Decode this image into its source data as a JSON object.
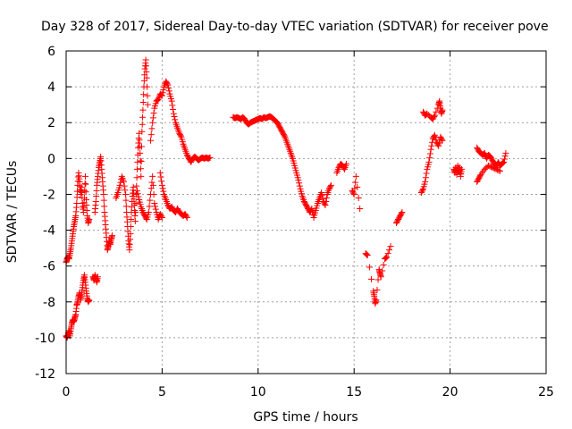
{
  "chart_data": {
    "type": "scatter",
    "title": "Day 328 of 2017, Sidereal Day-to-day VTEC variation (SDTVAR) for receiver pove",
    "xlabel": "GPS time / hours",
    "ylabel": "SDTVAR / TECUs",
    "xlim": [
      0,
      25
    ],
    "ylim": [
      -12,
      6
    ],
    "xticks": [
      0,
      5,
      10,
      15,
      20,
      25
    ],
    "yticks": [
      -12,
      -10,
      -8,
      -6,
      -4,
      -2,
      0,
      2,
      4,
      6
    ],
    "grid": true,
    "marker": "plus",
    "color": "#ff0000",
    "segments": [
      [
        [
          0.0,
          -9.9
        ],
        [
          0.05,
          -10.0
        ],
        [
          0.1,
          -9.8
        ],
        [
          0.15,
          -9.6
        ],
        [
          0.2,
          -9.9
        ],
        [
          0.25,
          -9.5
        ],
        [
          0.3,
          -9.2
        ],
        [
          0.35,
          -9.0
        ],
        [
          0.4,
          -9.1
        ],
        [
          0.45,
          -8.9
        ],
        [
          0.5,
          -8.7
        ],
        [
          0.55,
          -8.2
        ],
        [
          0.6,
          -8.0
        ],
        [
          0.65,
          -7.7
        ],
        [
          0.7,
          -7.5
        ],
        [
          0.75,
          -7.9
        ],
        [
          0.8,
          -7.6
        ],
        [
          0.85,
          -7.2
        ],
        [
          0.9,
          -6.8
        ],
        [
          0.95,
          -6.5
        ],
        [
          1.0,
          -6.9
        ],
        [
          1.05,
          -7.4
        ],
        [
          1.1,
          -7.8
        ],
        [
          1.15,
          -8.0
        ],
        [
          1.2,
          -7.9
        ]
      ],
      [
        [
          0.0,
          -5.8
        ],
        [
          0.05,
          -5.6
        ],
        [
          0.1,
          -5.5
        ],
        [
          0.15,
          -5.6
        ],
        [
          0.2,
          -5.3
        ],
        [
          0.25,
          -5.0
        ],
        [
          0.3,
          -4.6
        ],
        [
          0.35,
          -4.2
        ],
        [
          0.4,
          -3.8
        ],
        [
          0.45,
          -3.5
        ],
        [
          0.5,
          -3.2
        ],
        [
          0.55,
          -2.5
        ],
        [
          0.6,
          -1.5
        ],
        [
          0.65,
          -0.8
        ],
        [
          0.7,
          -1.3
        ],
        [
          0.75,
          -2.0
        ],
        [
          0.8,
          -1.6
        ],
        [
          0.85,
          -2.5
        ],
        [
          0.9,
          -3.0
        ],
        [
          0.95,
          -2.2
        ],
        [
          1.0,
          -1.0
        ],
        [
          1.05,
          -2.3
        ],
        [
          1.1,
          -3.2
        ],
        [
          1.15,
          -3.6
        ],
        [
          1.2,
          -3.4
        ]
      ],
      [
        [
          1.4,
          -6.6
        ],
        [
          1.45,
          -6.8
        ],
        [
          1.5,
          -6.5
        ],
        [
          1.55,
          -6.7
        ],
        [
          1.6,
          -6.9
        ],
        [
          1.65,
          -6.6
        ]
      ],
      [
        [
          1.5,
          -3.0
        ],
        [
          1.55,
          -2.4
        ],
        [
          1.6,
          -1.5
        ],
        [
          1.65,
          -1.0
        ],
        [
          1.7,
          -0.5
        ],
        [
          1.75,
          -0.2
        ],
        [
          1.8,
          0.1
        ],
        [
          1.85,
          -0.6
        ],
        [
          1.9,
          -1.3
        ],
        [
          1.95,
          -2.0
        ],
        [
          2.0,
          -3.0
        ],
        [
          2.05,
          -3.7
        ],
        [
          2.1,
          -4.4
        ],
        [
          2.15,
          -5.1
        ],
        [
          2.2,
          -4.9
        ],
        [
          2.25,
          -4.6
        ],
        [
          2.3,
          -4.8
        ],
        [
          2.35,
          -4.5
        ],
        [
          2.4,
          -4.3
        ]
      ],
      [
        [
          2.6,
          -2.2
        ],
        [
          2.7,
          -1.9
        ],
        [
          2.8,
          -1.5
        ],
        [
          2.9,
          -1.0
        ],
        [
          3.0,
          -1.3
        ],
        [
          3.1,
          -2.0
        ],
        [
          3.15,
          -3.0
        ],
        [
          3.2,
          -3.8
        ],
        [
          3.25,
          -4.6
        ],
        [
          3.3,
          -5.1
        ],
        [
          3.35,
          -4.2
        ],
        [
          3.4,
          -3.0
        ],
        [
          3.45,
          -2.1
        ],
        [
          3.5,
          -1.6
        ],
        [
          3.55,
          -2.6
        ],
        [
          3.6,
          -3.5
        ],
        [
          3.65,
          -2.0
        ],
        [
          3.7,
          -0.6
        ],
        [
          3.75,
          0.6
        ],
        [
          3.8,
          1.4
        ],
        [
          3.85,
          0.3
        ],
        [
          3.9,
          -1.0
        ],
        [
          3.95,
          1.5
        ],
        [
          4.0,
          2.7
        ],
        [
          4.05,
          4.0
        ],
        [
          4.1,
          5.0
        ],
        [
          4.15,
          5.5
        ],
        [
          4.2,
          4.5
        ],
        [
          4.25,
          3.0
        ]
      ],
      [
        [
          3.7,
          -1.8
        ],
        [
          3.8,
          -2.3
        ],
        [
          3.9,
          -2.7
        ],
        [
          4.0,
          -3.0
        ],
        [
          4.1,
          -3.2
        ],
        [
          4.2,
          -3.4
        ],
        [
          4.3,
          -3.0
        ],
        [
          4.4,
          -2.0
        ],
        [
          4.5,
          -1.0
        ],
        [
          4.6,
          -2.5
        ],
        [
          4.7,
          -3.0
        ],
        [
          4.8,
          -3.4
        ],
        [
          4.9,
          -3.1
        ],
        [
          5.0,
          -3.3
        ]
      ],
      [
        [
          4.4,
          1.0
        ],
        [
          4.5,
          2.0
        ],
        [
          4.6,
          2.8
        ],
        [
          4.7,
          3.2
        ],
        [
          4.8,
          3.3
        ],
        [
          4.9,
          3.6
        ],
        [
          5.0,
          3.5
        ],
        [
          5.1,
          4.0
        ],
        [
          5.2,
          4.3
        ],
        [
          5.3,
          4.1
        ],
        [
          5.4,
          3.6
        ],
        [
          5.5,
          3.2
        ],
        [
          5.6,
          2.5
        ],
        [
          5.7,
          2.0
        ],
        [
          5.8,
          1.7
        ],
        [
          5.9,
          1.4
        ],
        [
          6.0,
          1.2
        ],
        [
          6.1,
          0.8
        ],
        [
          6.2,
          0.5
        ],
        [
          6.3,
          0.2
        ],
        [
          6.4,
          0.0
        ],
        [
          6.5,
          -0.2
        ],
        [
          6.6,
          0.0
        ],
        [
          6.7,
          0.1
        ],
        [
          6.8,
          0.0
        ],
        [
          6.9,
          -0.1
        ],
        [
          7.0,
          0.0
        ],
        [
          7.1,
          0.05
        ],
        [
          7.2,
          0.0
        ],
        [
          7.3,
          0.05
        ],
        [
          7.4,
          0.0
        ],
        [
          7.5,
          0.05
        ]
      ],
      [
        [
          4.9,
          -0.8
        ],
        [
          5.0,
          -1.5
        ],
        [
          5.1,
          -2.0
        ],
        [
          5.2,
          -2.3
        ],
        [
          5.3,
          -2.6
        ],
        [
          5.4,
          -2.8
        ],
        [
          5.5,
          -2.7
        ],
        [
          5.6,
          -2.9
        ],
        [
          5.7,
          -3.0
        ],
        [
          5.8,
          -2.8
        ],
        [
          5.9,
          -3.0
        ],
        [
          6.0,
          -3.1
        ],
        [
          6.1,
          -3.2
        ],
        [
          6.2,
          -3.1
        ],
        [
          6.3,
          -3.3
        ]
      ],
      [
        [
          8.7,
          2.3
        ],
        [
          8.8,
          2.25
        ],
        [
          8.9,
          2.3
        ],
        [
          9.0,
          2.25
        ],
        [
          9.1,
          2.2
        ],
        [
          9.2,
          2.3
        ],
        [
          9.3,
          2.2
        ],
        [
          9.4,
          2.0
        ],
        [
          9.5,
          1.9
        ],
        [
          9.6,
          2.0
        ],
        [
          9.7,
          2.05
        ],
        [
          9.8,
          2.1
        ],
        [
          9.9,
          2.15
        ],
        [
          10.0,
          2.2
        ],
        [
          10.1,
          2.25
        ],
        [
          10.2,
          2.2
        ],
        [
          10.3,
          2.3
        ],
        [
          10.4,
          2.25
        ],
        [
          10.5,
          2.3
        ],
        [
          10.6,
          2.35
        ],
        [
          10.7,
          2.3
        ],
        [
          10.8,
          2.2
        ],
        [
          10.9,
          2.1
        ],
        [
          11.0,
          2.0
        ],
        [
          11.1,
          1.8
        ],
        [
          11.2,
          1.6
        ],
        [
          11.3,
          1.4
        ],
        [
          11.4,
          1.2
        ],
        [
          11.5,
          0.9
        ],
        [
          11.6,
          0.6
        ],
        [
          11.7,
          0.3
        ],
        [
          11.8,
          0.0
        ],
        [
          11.9,
          -0.4
        ],
        [
          12.0,
          -0.8
        ],
        [
          12.1,
          -1.2
        ],
        [
          12.2,
          -1.7
        ],
        [
          12.3,
          -2.1
        ],
        [
          12.4,
          -2.4
        ],
        [
          12.5,
          -2.6
        ],
        [
          12.6,
          -2.8
        ],
        [
          12.7,
          -3.0
        ],
        [
          12.8,
          -2.8
        ],
        [
          12.9,
          -3.3
        ],
        [
          13.0,
          -2.9
        ],
        [
          13.1,
          -2.5
        ],
        [
          13.2,
          -2.2
        ],
        [
          13.3,
          -1.9
        ],
        [
          13.4,
          -2.4
        ],
        [
          13.5,
          -2.6
        ],
        [
          13.6,
          -2.0
        ],
        [
          13.7,
          -1.7
        ],
        [
          13.8,
          -1.5
        ]
      ],
      [
        [
          14.1,
          -0.8
        ],
        [
          14.2,
          -0.5
        ],
        [
          14.3,
          -0.3
        ],
        [
          14.4,
          -0.4
        ],
        [
          14.5,
          -0.6
        ],
        [
          14.6,
          -0.3
        ]
      ],
      [
        [
          14.9,
          -1.8
        ],
        [
          15.0,
          -2.0
        ],
        [
          15.1,
          -1.0
        ],
        [
          15.3,
          -2.8
        ]
      ],
      [
        [
          15.6,
          -5.3
        ],
        [
          15.7,
          -5.4
        ],
        [
          16.0,
          -7.4
        ],
        [
          16.05,
          -7.7
        ],
        [
          16.1,
          -8.1
        ],
        [
          16.15,
          -7.9
        ],
        [
          16.3,
          -6.2
        ],
        [
          16.35,
          -6.4
        ],
        [
          16.4,
          -6.6
        ],
        [
          16.6,
          -5.6
        ],
        [
          16.7,
          -5.5
        ],
        [
          16.9,
          -4.9
        ]
      ],
      [
        [
          17.2,
          -3.6
        ],
        [
          17.3,
          -3.4
        ],
        [
          17.4,
          -3.2
        ],
        [
          17.5,
          -3.0
        ]
      ],
      [
        [
          18.5,
          -1.9
        ],
        [
          18.6,
          -1.7
        ],
        [
          18.7,
          -1.3
        ],
        [
          18.8,
          -0.6
        ],
        [
          18.9,
          -0.2
        ],
        [
          19.0,
          0.5
        ],
        [
          19.1,
          1.1
        ],
        [
          19.2,
          1.3
        ],
        [
          19.3,
          0.9
        ],
        [
          19.4,
          0.7
        ],
        [
          19.5,
          1.2
        ],
        [
          19.6,
          1.0
        ]
      ],
      [
        [
          18.6,
          2.6
        ],
        [
          18.7,
          2.4
        ],
        [
          18.8,
          2.5
        ],
        [
          19.0,
          2.3
        ],
        [
          19.1,
          2.2
        ],
        [
          19.2,
          2.4
        ],
        [
          19.4,
          3.0
        ],
        [
          19.45,
          3.2
        ],
        [
          19.5,
          2.8
        ],
        [
          19.55,
          2.5
        ],
        [
          19.6,
          2.7
        ]
      ],
      [
        [
          20.2,
          -0.6
        ],
        [
          20.25,
          -0.8
        ],
        [
          20.3,
          -0.5
        ],
        [
          20.35,
          -0.9
        ],
        [
          20.4,
          -0.4
        ],
        [
          20.45,
          -0.7
        ],
        [
          20.5,
          -0.5
        ],
        [
          20.55,
          -1.0
        ],
        [
          20.6,
          -0.6
        ]
      ],
      [
        [
          21.4,
          0.6
        ],
        [
          21.5,
          0.4
        ],
        [
          21.6,
          0.3
        ],
        [
          21.7,
          0.2
        ],
        [
          21.8,
          0.3
        ],
        [
          21.9,
          0.0
        ],
        [
          22.0,
          0.2
        ],
        [
          22.1,
          0.1
        ],
        [
          22.2,
          -0.1
        ],
        [
          22.3,
          -0.3
        ],
        [
          22.4,
          -0.5
        ],
        [
          22.5,
          -0.2
        ],
        [
          22.6,
          -0.4
        ],
        [
          22.7,
          -0.3
        ],
        [
          22.8,
          -0.2
        ],
        [
          22.9,
          0.3
        ]
      ],
      [
        [
          21.4,
          -1.3
        ],
        [
          21.5,
          -1.1
        ],
        [
          21.6,
          -0.9
        ],
        [
          21.8,
          -0.6
        ],
        [
          22.0,
          -0.4
        ],
        [
          22.2,
          -0.5
        ],
        [
          22.4,
          -0.6
        ],
        [
          22.6,
          -0.7
        ]
      ]
    ]
  }
}
